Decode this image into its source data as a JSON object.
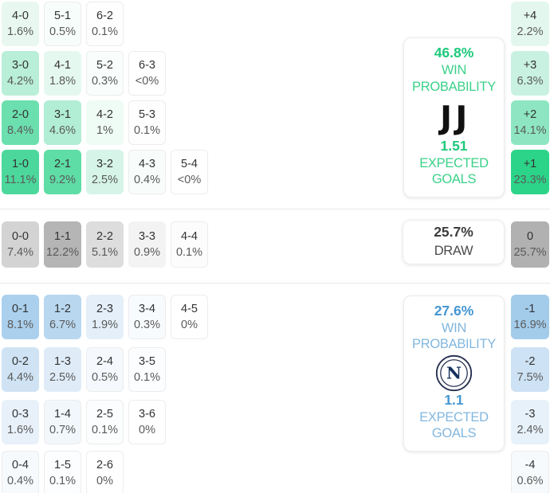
{
  "chart_data": {
    "type": "heatmap",
    "description": "Correct score and goal difference probability matrix",
    "home": {
      "panel": {
        "win_pct": "46.8%",
        "win_label": "WIN PROBABILITY",
        "expected_goals": "1.51",
        "expected_goals_label": "EXPECTED GOALS",
        "logo": "juventus-logo",
        "accent_strong": "#1dc97c",
        "accent_soft": "#3bd189",
        "logo_color": "#111111"
      },
      "score_rows": [
        [
          {
            "score": "4-0",
            "pct": "1.6%",
            "color": "#e8f8f0"
          },
          {
            "score": "5-1",
            "pct": "0.5%",
            "color": "#f7fdfa"
          },
          {
            "score": "6-2",
            "pct": "0.1%",
            "color": "#fdfefd"
          }
        ],
        [
          {
            "score": "3-0",
            "pct": "4.2%",
            "color": "#b9eed8"
          },
          {
            "score": "4-1",
            "pct": "1.8%",
            "color": "#e5f8f0"
          },
          {
            "score": "5-2",
            "pct": "0.3%",
            "color": "#f9fdfb"
          },
          {
            "score": "6-3",
            "pct": "<0%",
            "color": "#ffffff"
          }
        ],
        [
          {
            "score": "2-0",
            "pct": "8.4%",
            "color": "#6cdfae"
          },
          {
            "score": "3-1",
            "pct": "4.6%",
            "color": "#b2edd5"
          },
          {
            "score": "4-2",
            "pct": "1%",
            "color": "#effbf5"
          },
          {
            "score": "5-3",
            "pct": "0.1%",
            "color": "#fdfefd"
          }
        ],
        [
          {
            "score": "1-0",
            "pct": "11.1%",
            "color": "#4cd89c"
          },
          {
            "score": "2-1",
            "pct": "9.2%",
            "color": "#5edda6"
          },
          {
            "score": "3-2",
            "pct": "2.5%",
            "color": "#d6f4e8"
          },
          {
            "score": "4-3",
            "pct": "0.4%",
            "color": "#f8fdfb"
          },
          {
            "score": "5-4",
            "pct": "<0%",
            "color": "#ffffff"
          }
        ]
      ],
      "diff_cells": [
        {
          "label": "+4",
          "pct": "2.2%",
          "color": "#e4f7ee"
        },
        {
          "label": "+3",
          "pct": "6.3%",
          "color": "#c9f1e1"
        },
        {
          "label": "+2",
          "pct": "14.1%",
          "color": "#8de6c1"
        },
        {
          "label": "+1",
          "pct": "23.3%",
          "color": "#2bd488"
        }
      ]
    },
    "draw": {
      "panel": {
        "pct": "25.7%",
        "label": "DRAW",
        "accent_strong": "#3d3d3d",
        "accent_soft": "#4a4a4a"
      },
      "score_cells": [
        {
          "score": "0-0",
          "pct": "7.4%",
          "color": "#d3d3d3"
        },
        {
          "score": "1-1",
          "pct": "12.2%",
          "color": "#b5b5b5"
        },
        {
          "score": "2-2",
          "pct": "5.1%",
          "color": "#dddddd"
        },
        {
          "score": "3-3",
          "pct": "0.9%",
          "color": "#f3f3f3"
        },
        {
          "score": "4-4",
          "pct": "0.1%",
          "color": "#fcfcfc"
        }
      ],
      "diff_cell": {
        "label": "0",
        "pct": "25.7%",
        "color": "#b1b1b1"
      }
    },
    "away": {
      "panel": {
        "win_pct": "27.6%",
        "win_label": "WIN PROBABILITY",
        "expected_goals": "1.1",
        "expected_goals_label": "EXPECTED GOALS",
        "logo": "napoli-logo",
        "accent_strong": "#4597d3",
        "accent_soft": "#82b7de",
        "logo_color": "#25304f"
      },
      "score_rows": [
        [
          {
            "score": "0-1",
            "pct": "8.1%",
            "color": "#abd0ed"
          },
          {
            "score": "1-2",
            "pct": "6.7%",
            "color": "#b9d8f0"
          },
          {
            "score": "2-3",
            "pct": "1.9%",
            "color": "#e4eff9"
          },
          {
            "score": "3-4",
            "pct": "0.3%",
            "color": "#f8fbfe"
          },
          {
            "score": "4-5",
            "pct": "0%",
            "color": "#ffffff"
          }
        ],
        [
          {
            "score": "0-2",
            "pct": "4.4%",
            "color": "#cfe3f4"
          },
          {
            "score": "1-3",
            "pct": "2.5%",
            "color": "#dfecf8"
          },
          {
            "score": "2-4",
            "pct": "0.5%",
            "color": "#f5f9fd"
          },
          {
            "score": "3-5",
            "pct": "0.1%",
            "color": "#fbfdfe"
          }
        ],
        [
          {
            "score": "0-3",
            "pct": "1.6%",
            "color": "#e8f1fa"
          },
          {
            "score": "1-4",
            "pct": "0.7%",
            "color": "#f2f7fc"
          },
          {
            "score": "2-5",
            "pct": "0.1%",
            "color": "#fbfdfe"
          },
          {
            "score": "3-6",
            "pct": "0%",
            "color": "#ffffff"
          }
        ],
        [
          {
            "score": "0-4",
            "pct": "0.4%",
            "color": "#f6fafd"
          },
          {
            "score": "1-5",
            "pct": "0.1%",
            "color": "#fcfdfe"
          },
          {
            "score": "2-6",
            "pct": "0%",
            "color": "#ffffff"
          }
        ]
      ],
      "diff_cells": [
        {
          "label": "-1",
          "pct": "16.9%",
          "color": "#a3cceb"
        },
        {
          "label": "-2",
          "pct": "7.5%",
          "color": "#cde2f4"
        },
        {
          "label": "-3",
          "pct": "2.4%",
          "color": "#e7f1f9"
        },
        {
          "label": "-4",
          "pct": "0.6%",
          "color": "#f7fafc"
        }
      ]
    }
  }
}
